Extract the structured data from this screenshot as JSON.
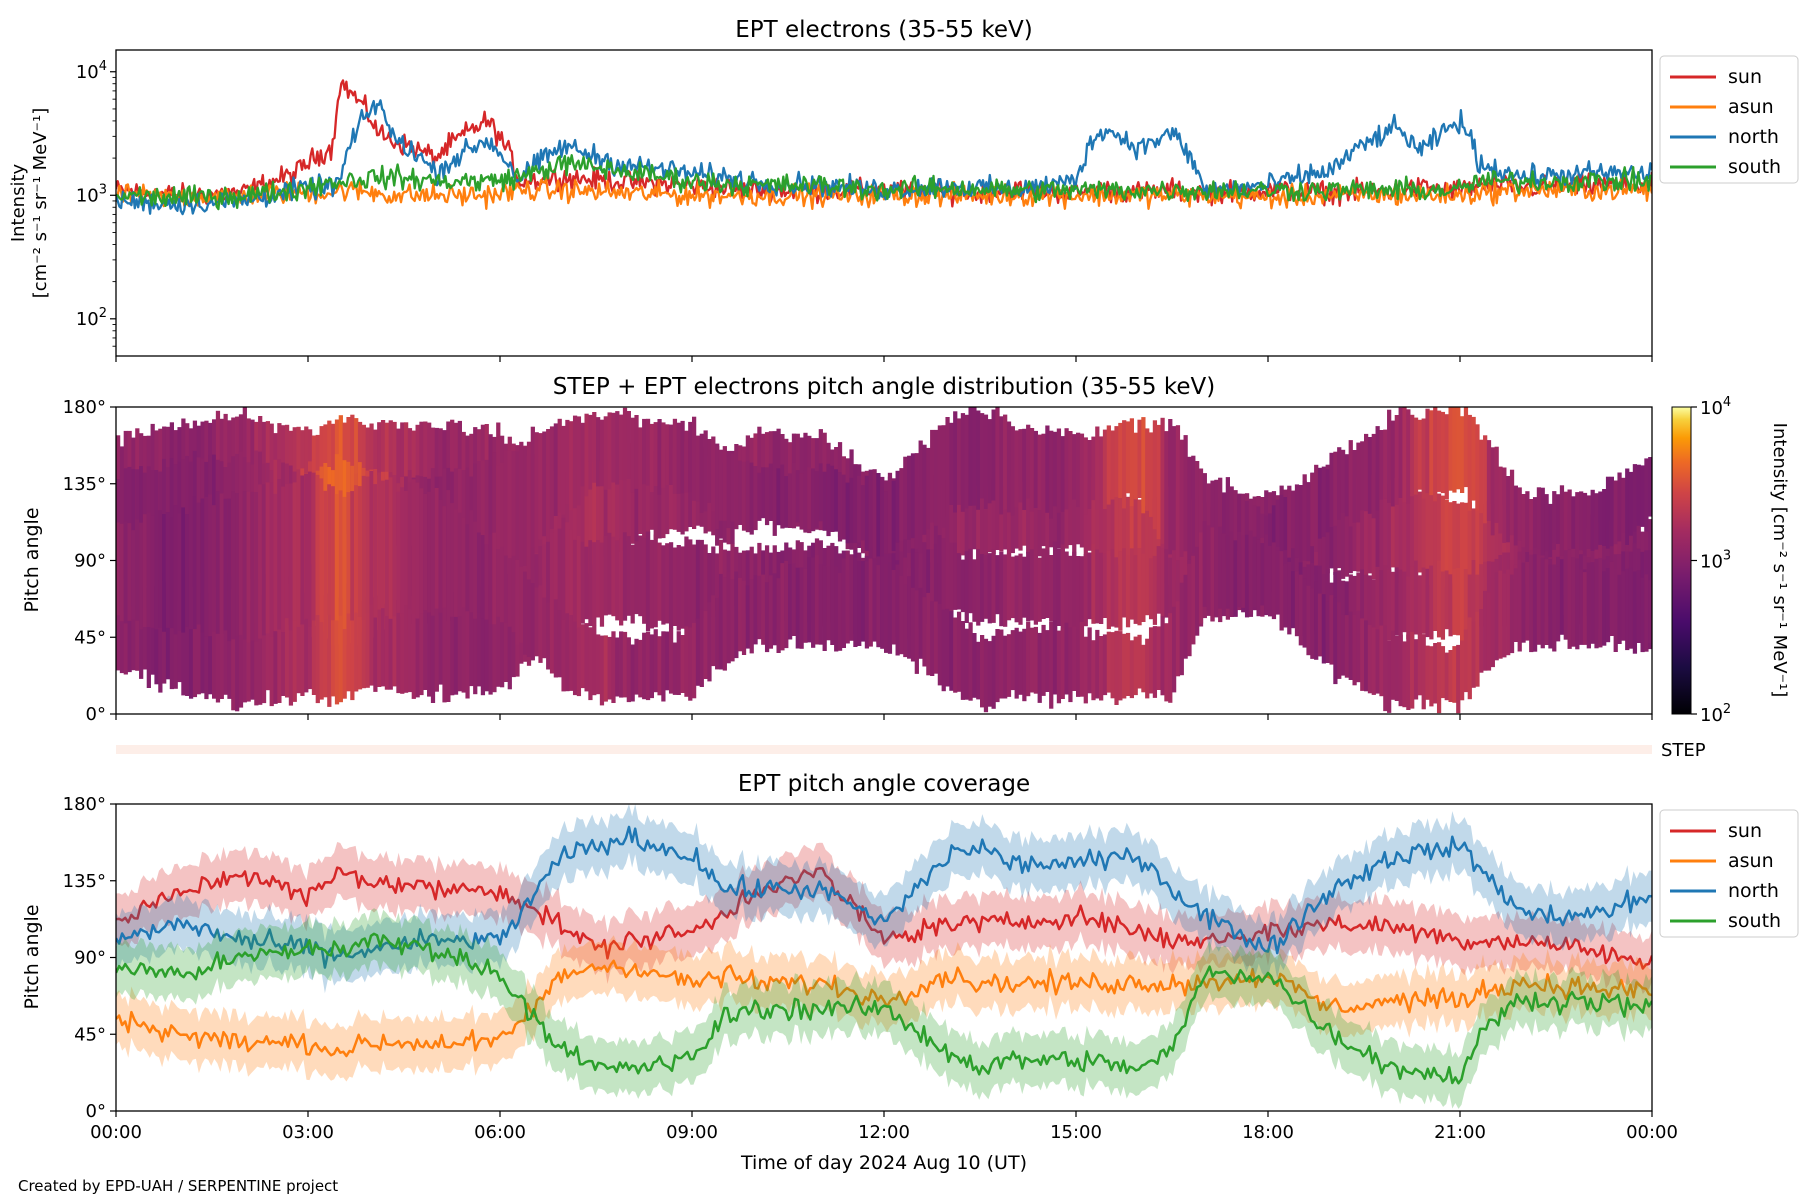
{
  "credit": "Created by EPD-UAH / SERPENTINE project",
  "chart_data": [
    {
      "type": "line",
      "title": "EPT electrons (35-55 keV)",
      "ylabel_line1": "Intensity",
      "ylabel_line2": "[cm⁻² s⁻¹ sr⁻¹ MeV⁻¹]",
      "yscale": "log",
      "ylim": [
        50,
        15000
      ],
      "yticks": [
        {
          "value": 10000,
          "base": "10",
          "exp": "4"
        },
        {
          "value": 1000,
          "base": "10",
          "exp": "3"
        },
        {
          "value": 100,
          "base": "10",
          "exp": "2"
        }
      ],
      "xlim": [
        0,
        24
      ],
      "legend_position": "outside-right",
      "x": [
        0,
        1,
        2,
        2.8,
        3.4,
        3.5,
        4.1,
        4.3,
        5.0,
        5.8,
        6.3,
        7.0,
        7.8,
        9.0,
        10.0,
        11.0,
        12.0,
        13.0,
        14.0,
        15.0,
        15.4,
        16.0,
        16.5,
        17.0,
        18.0,
        19.0,
        20.0,
        20.4,
        21.0,
        21.3,
        22.0,
        23.0,
        24.0
      ],
      "series": [
        {
          "name": "sun",
          "color": "#d62728",
          "values": [
            1100,
            1000,
            1050,
            1500,
            2500,
            8200,
            3200,
            2800,
            2000,
            4000,
            1300,
            1400,
            1300,
            1200,
            1100,
            1100,
            1100,
            1050,
            1100,
            1050,
            1100,
            1050,
            1100,
            1050,
            1100,
            1050,
            1100,
            1150,
            1100,
            1200,
            1150,
            1200,
            1200
          ]
        },
        {
          "name": "asun",
          "color": "#ff7f0e",
          "values": [
            1000,
            950,
            1000,
            1050,
            1050,
            1100,
            1050,
            1000,
            1000,
            1000,
            1100,
            1100,
            1050,
            1000,
            1000,
            1000,
            1000,
            1000,
            1000,
            1000,
            1000,
            1000,
            1000,
            1000,
            950,
            1000,
            1000,
            1000,
            1000,
            1050,
            1100,
            1100,
            1100
          ]
        },
        {
          "name": "north",
          "color": "#1f77b4",
          "values": [
            900,
            850,
            900,
            1100,
            1200,
            1300,
            5800,
            3000,
            1500,
            2800,
            1300,
            2500,
            1800,
            1500,
            1300,
            1200,
            1100,
            1200,
            1100,
            1300,
            3500,
            2400,
            3200,
            1100,
            1200,
            1600,
            3500,
            2200,
            4000,
            1800,
            1400,
            1500,
            1500
          ]
        },
        {
          "name": "south",
          "color": "#2ca02c",
          "values": [
            1000,
            950,
            1000,
            1100,
            1300,
            1300,
            1400,
            1400,
            1300,
            1300,
            1400,
            1800,
            1600,
            1300,
            1200,
            1200,
            1100,
            1150,
            1100,
            1100,
            1100,
            1100,
            1100,
            1100,
            1100,
            1100,
            1100,
            1100,
            1100,
            1300,
            1300,
            1300,
            1300
          ]
        }
      ]
    },
    {
      "type": "heatmap",
      "title": "STEP + EPT electrons pitch angle distribution (35-55 keV)",
      "ylabel": "Pitch angle",
      "ylim": [
        0,
        180
      ],
      "yticks": [
        "0°",
        "45°",
        "90°",
        "135°",
        "180°"
      ],
      "xlim": [
        0,
        24
      ],
      "colorbar_label": "Intensity [cm⁻² s⁻¹ sr⁻¹ MeV⁻¹]",
      "colorbar_scale": "log",
      "colorbar_range": [
        100,
        10000
      ],
      "colorbar_ticks": [
        {
          "value": 10000,
          "base": "10",
          "exp": "4"
        },
        {
          "value": 1000,
          "base": "10",
          "exp": "3"
        },
        {
          "value": 100,
          "base": "10",
          "exp": "2"
        }
      ],
      "colormap": "inferno",
      "step_label": "STEP",
      "time_hours": [
        0,
        1,
        2,
        3,
        3.5,
        4,
        5,
        6,
        7,
        7.5,
        8,
        9,
        9.5,
        10,
        11,
        12,
        13,
        13.5,
        14,
        15,
        16,
        16.5,
        17,
        18,
        19,
        20,
        21,
        21.5,
        22,
        23,
        24
      ],
      "band_sun": [
        [
          60,
          160
        ],
        [
          85,
          170
        ],
        [
          80,
          175
        ],
        [
          85,
          165
        ],
        [
          100,
          175
        ],
        [
          100,
          170
        ],
        [
          95,
          170
        ],
        [
          95,
          165
        ],
        [
          75,
          140
        ],
        [
          90,
          150
        ],
        [
          100,
          155
        ],
        [
          110,
          160
        ],
        [
          100,
          150
        ],
        [
          120,
          165
        ],
        [
          110,
          165
        ],
        [
          85,
          135
        ],
        [
          90,
          135
        ],
        [
          90,
          130
        ],
        [
          95,
          135
        ],
        [
          95,
          140
        ],
        [
          85,
          125
        ],
        [
          75,
          130
        ],
        [
          80,
          125
        ],
        [
          80,
          130
        ],
        [
          85,
          140
        ],
        [
          80,
          135
        ],
        [
          75,
          125
        ],
        [
          80,
          120
        ],
        [
          80,
          120
        ],
        [
          70,
          115
        ],
        [
          60,
          110
        ]
      ],
      "band_north": [
        [
          60,
          140
        ],
        [
          70,
          150
        ],
        [
          60,
          150
        ],
        [
          50,
          145
        ],
        [
          40,
          150
        ],
        [
          45,
          140
        ],
        [
          60,
          140
        ],
        [
          60,
          150
        ],
        [
          120,
          175
        ],
        [
          130,
          175
        ],
        [
          135,
          175
        ],
        [
          130,
          170
        ],
        [
          110,
          160
        ],
        [
          110,
          145
        ],
        [
          110,
          145
        ],
        [
          90,
          135
        ],
        [
          115,
          175
        ],
        [
          125,
          180
        ],
        [
          120,
          170
        ],
        [
          120,
          165
        ],
        [
          125,
          170
        ],
        [
          90,
          170
        ],
        [
          90,
          140
        ],
        [
          70,
          120
        ],
        [
          110,
          150
        ],
        [
          125,
          175
        ],
        [
          130,
          180
        ],
        [
          110,
          160
        ],
        [
          95,
          130
        ],
        [
          95,
          130
        ],
        [
          110,
          150
        ]
      ],
      "band_asun": [
        [
          25,
          80
        ],
        [
          15,
          75
        ],
        [
          5,
          70
        ],
        [
          10,
          75
        ],
        [
          5,
          70
        ],
        [
          15,
          70
        ],
        [
          10,
          70
        ],
        [
          15,
          75
        ],
        [
          50,
          110
        ],
        [
          55,
          100
        ],
        [
          55,
          105
        ],
        [
          50,
          100
        ],
        [
          60,
          100
        ],
        [
          55,
          95
        ],
        [
          55,
          100
        ],
        [
          40,
          90
        ],
        [
          60,
          100
        ],
        [
          55,
          95
        ],
        [
          55,
          95
        ],
        [
          50,
          95
        ],
        [
          55,
          95
        ],
        [
          55,
          95
        ],
        [
          55,
          95
        ],
        [
          60,
          100
        ],
        [
          40,
          80
        ],
        [
          45,
          85
        ],
        [
          45,
          85
        ],
        [
          55,
          90
        ],
        [
          55,
          95
        ],
        [
          55,
          90
        ],
        [
          40,
          100
        ]
      ],
      "band_south": [
        [
          55,
          110
        ],
        [
          50,
          120
        ],
        [
          45,
          130
        ],
        [
          55,
          140
        ],
        [
          55,
          130
        ],
        [
          60,
          140
        ],
        [
          60,
          130
        ],
        [
          55,
          100
        ],
        [
          15,
          60
        ],
        [
          10,
          50
        ],
        [
          10,
          45
        ],
        [
          10,
          50
        ],
        [
          30,
          80
        ],
        [
          40,
          80
        ],
        [
          40,
          90
        ],
        [
          40,
          90
        ],
        [
          15,
          60
        ],
        [
          5,
          45
        ],
        [
          10,
          50
        ],
        [
          10,
          50
        ],
        [
          10,
          45
        ],
        [
          10,
          60
        ],
        [
          60,
          110
        ],
        [
          60,
          100
        ],
        [
          25,
          65
        ],
        [
          5,
          45
        ],
        [
          5,
          40
        ],
        [
          30,
          80
        ],
        [
          40,
          90
        ],
        [
          40,
          90
        ],
        [
          40,
          80
        ]
      ],
      "intensity_levels": [
        [
          1200,
          1000,
          1300,
          1900,
          3500,
          2000,
          1300,
          1300,
          1500,
          1700,
          1400,
          1300,
          1200,
          1200,
          1100,
          1000,
          1200,
          1200,
          1300,
          1300,
          2500,
          1500,
          1200,
          1100,
          1100,
          1500,
          2600,
          1700,
          1200,
          1100,
          1000
        ]
      ]
    },
    {
      "type": "line",
      "title": "EPT pitch angle coverage",
      "ylabel": "Pitch angle",
      "xlabel": "Time of day 2024 Aug 10 (UT)",
      "ylim": [
        0,
        180
      ],
      "yticks": [
        "0°",
        "45°",
        "90°",
        "135°",
        "180°"
      ],
      "xlim": [
        0,
        24
      ],
      "xticks": [
        "00:00",
        "03:00",
        "06:00",
        "09:00",
        "12:00",
        "15:00",
        "18:00",
        "21:00",
        "00:00"
      ],
      "legend_position": "outside-right",
      "band_halfwidth_deg": 15,
      "x": [
        0,
        1,
        2,
        3,
        3.5,
        4,
        5,
        6,
        7,
        7.5,
        8,
        9,
        9.5,
        10,
        11,
        12,
        13,
        13.5,
        14,
        15,
        16,
        16.5,
        17,
        18,
        19,
        20,
        21,
        21.5,
        22,
        23,
        24
      ],
      "series": [
        {
          "name": "sun",
          "color": "#d62728",
          "values": [
            110,
            128,
            140,
            125,
            140,
            135,
            130,
            130,
            108,
            95,
            100,
            105,
            115,
            130,
            140,
            100,
            110,
            110,
            110,
            115,
            105,
            100,
            100,
            105,
            110,
            108,
            100,
            100,
            100,
            95,
            85
          ]
        },
        {
          "name": "asun",
          "color": "#ff7f0e",
          "values": [
            55,
            45,
            40,
            40,
            35,
            40,
            40,
            40,
            80,
            85,
            85,
            75,
            80,
            75,
            75,
            65,
            80,
            75,
            75,
            75,
            75,
            75,
            75,
            80,
            60,
            65,
            65,
            72,
            75,
            72,
            70
          ]
        },
        {
          "name": "north",
          "color": "#1f77b4",
          "values": [
            100,
            110,
            100,
            95,
            90,
            95,
            100,
            100,
            150,
            155,
            160,
            150,
            130,
            130,
            130,
            110,
            150,
            155,
            145,
            145,
            150,
            130,
            115,
            95,
            130,
            150,
            155,
            135,
            115,
            115,
            125
          ]
        },
        {
          "name": "south",
          "color": "#2ca02c",
          "values": [
            85,
            80,
            90,
            95,
            95,
            100,
            95,
            80,
            35,
            25,
            25,
            30,
            55,
            60,
            60,
            60,
            35,
            25,
            30,
            30,
            25,
            35,
            80,
            80,
            45,
            25,
            20,
            55,
            65,
            65,
            60
          ]
        }
      ]
    }
  ]
}
